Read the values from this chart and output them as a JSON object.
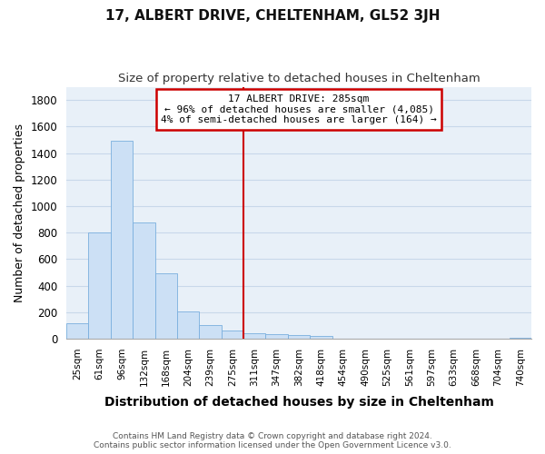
{
  "title": "17, ALBERT DRIVE, CHELTENHAM, GL52 3JH",
  "subtitle": "Size of property relative to detached houses in Cheltenham",
  "xlabel": "Distribution of detached houses by size in Cheltenham",
  "ylabel": "Number of detached properties",
  "bar_color": "#cce0f5",
  "bar_edge_color": "#7aafde",
  "background_color": "#e8f0f8",
  "grid_color": "#c8d8ea",
  "fig_bg_color": "#ffffff",
  "categories": [
    "25sqm",
    "61sqm",
    "96sqm",
    "132sqm",
    "168sqm",
    "204sqm",
    "239sqm",
    "275sqm",
    "311sqm",
    "347sqm",
    "382sqm",
    "418sqm",
    "454sqm",
    "490sqm",
    "525sqm",
    "561sqm",
    "597sqm",
    "633sqm",
    "668sqm",
    "704sqm",
    "740sqm"
  ],
  "values": [
    120,
    800,
    1490,
    880,
    490,
    205,
    105,
    65,
    40,
    35,
    30,
    20,
    0,
    0,
    0,
    0,
    0,
    0,
    0,
    0,
    10
  ],
  "ylim": [
    0,
    1900
  ],
  "yticks": [
    0,
    200,
    400,
    600,
    800,
    1000,
    1200,
    1400,
    1600,
    1800
  ],
  "annotation_title": "17 ALBERT DRIVE: 285sqm",
  "annotation_line1": "← 96% of detached houses are smaller (4,085)",
  "annotation_line2": "4% of semi-detached houses are larger (164) →",
  "vline_x": 7.5,
  "vline_color": "#cc0000",
  "footer_line1": "Contains HM Land Registry data © Crown copyright and database right 2024.",
  "footer_line2": "Contains public sector information licensed under the Open Government Licence v3.0."
}
